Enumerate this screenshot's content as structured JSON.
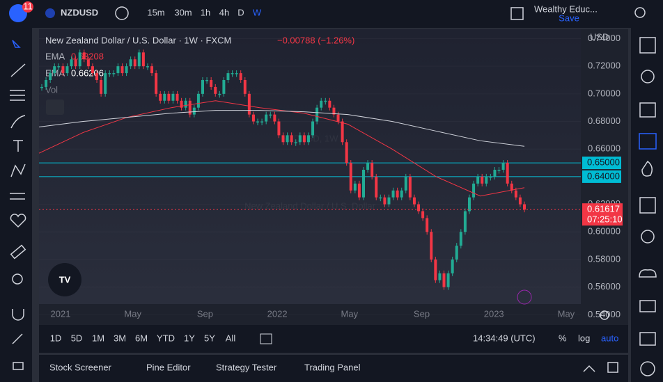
{
  "header": {
    "badge": "11",
    "symbol": "NZDUSD",
    "intervals": [
      "15m",
      "30m",
      "1h",
      "4h",
      "D",
      "W"
    ],
    "layout_name": "Wealthy Educ...",
    "save": "Save"
  },
  "legend": {
    "title": "New Zealand Dollar / U.S. Dollar · 1W · FXCM",
    "change": "−0.00788 (−1.26%)",
    "ema1_label": "EMA",
    "ema1_value": "0.63208",
    "ema2_label": "EMA",
    "ema2_value": "0.66206",
    "vol": "Vol"
  },
  "watermark": {
    "symbol": "NZDUSD, 1W",
    "description": "New Zealand Dollar / U.S. Dollar"
  },
  "chart_data": {
    "type": "candlestick",
    "currency": "USD",
    "up_color": "#22ab94",
    "down_color": "#f23645",
    "closes": [
      0.705,
      0.71,
      0.715,
      0.72,
      0.72,
      0.715,
      0.72,
      0.725,
      0.72,
      0.73,
      0.725,
      0.72,
      0.715,
      0.71,
      0.7,
      0.715,
      0.715,
      0.715,
      0.72,
      0.715,
      0.72,
      0.725,
      0.72,
      0.73,
      0.72,
      0.72,
      0.715,
      0.7,
      0.695,
      0.7,
      0.695,
      0.7,
      0.695,
      0.69,
      0.695,
      0.685,
      0.69,
      0.7,
      0.71,
      0.71,
      0.705,
      0.7,
      0.7,
      0.71,
      0.715,
      0.715,
      0.715,
      0.71,
      0.7,
      0.685,
      0.68,
      0.68,
      0.68,
      0.685,
      0.685,
      0.68,
      0.67,
      0.665,
      0.67,
      0.665,
      0.665,
      0.67,
      0.665,
      0.67,
      0.68,
      0.69,
      0.695,
      0.695,
      0.69,
      0.685,
      0.68,
      0.665,
      0.65,
      0.63,
      0.635,
      0.625,
      0.645,
      0.65,
      0.64,
      0.625,
      0.625,
      0.62,
      0.625,
      0.63,
      0.625,
      0.63,
      0.64,
      0.625,
      0.62,
      0.615,
      0.61,
      0.6,
      0.58,
      0.565,
      0.57,
      0.56,
      0.57,
      0.58,
      0.59,
      0.6,
      0.615,
      0.625,
      0.635,
      0.64,
      0.635,
      0.64,
      0.64,
      0.645,
      0.645,
      0.65,
      0.635,
      0.63,
      0.625,
      0.62,
      0.61617
    ],
    "ema_lines": [
      {
        "color": "#f23645",
        "values": [
          0.657,
          0.672,
          0.683,
          0.69,
          0.695,
          0.69,
          0.686,
          0.678,
          0.66,
          0.64,
          0.626,
          0.632
        ]
      },
      {
        "color": "#d1d4dc",
        "values": [
          0.676,
          0.68,
          0.683,
          0.686,
          0.688,
          0.688,
          0.687,
          0.685,
          0.68,
          0.673,
          0.666,
          0.662
        ]
      }
    ],
    "ylim": [
      0.5326,
      0.7468
    ],
    "yticks": [
      {
        "value": 0.74,
        "label": "0.74000"
      },
      {
        "value": 0.72,
        "label": "0.72000"
      },
      {
        "value": 0.7,
        "label": "0.70000"
      },
      {
        "value": 0.68,
        "label": "0.68000"
      },
      {
        "value": 0.66,
        "label": "0.66000"
      },
      {
        "value": 0.64,
        "label": "0.64000"
      },
      {
        "value": 0.62,
        "label": "0.62000"
      },
      {
        "value": 0.6,
        "label": "0.60000"
      },
      {
        "value": 0.58,
        "label": "0.58000"
      },
      {
        "value": 0.56,
        "label": "0.56000"
      },
      {
        "value": 0.54,
        "label": "0.54000"
      }
    ],
    "hlines": [
      {
        "value": 0.65,
        "label": "0.65000"
      },
      {
        "value": 0.64,
        "label": "0.64000"
      }
    ],
    "last_price": 0.61617,
    "countdown": "07:25:10",
    "time_labels": [
      "2021",
      "May",
      "Sep",
      "2022",
      "May",
      "Sep",
      "2023",
      "May"
    ]
  },
  "range_bar": {
    "ranges": [
      "1D",
      "5D",
      "1M",
      "3M",
      "6M",
      "YTD",
      "1Y",
      "5Y",
      "All"
    ],
    "clock": "14:34:49 (UTC)",
    "percent": "%",
    "log": "log",
    "auto": "auto"
  },
  "bottom_tabs": [
    "Stock Screener",
    "Pine Editor",
    "Strategy Tester",
    "Trading Panel"
  ]
}
